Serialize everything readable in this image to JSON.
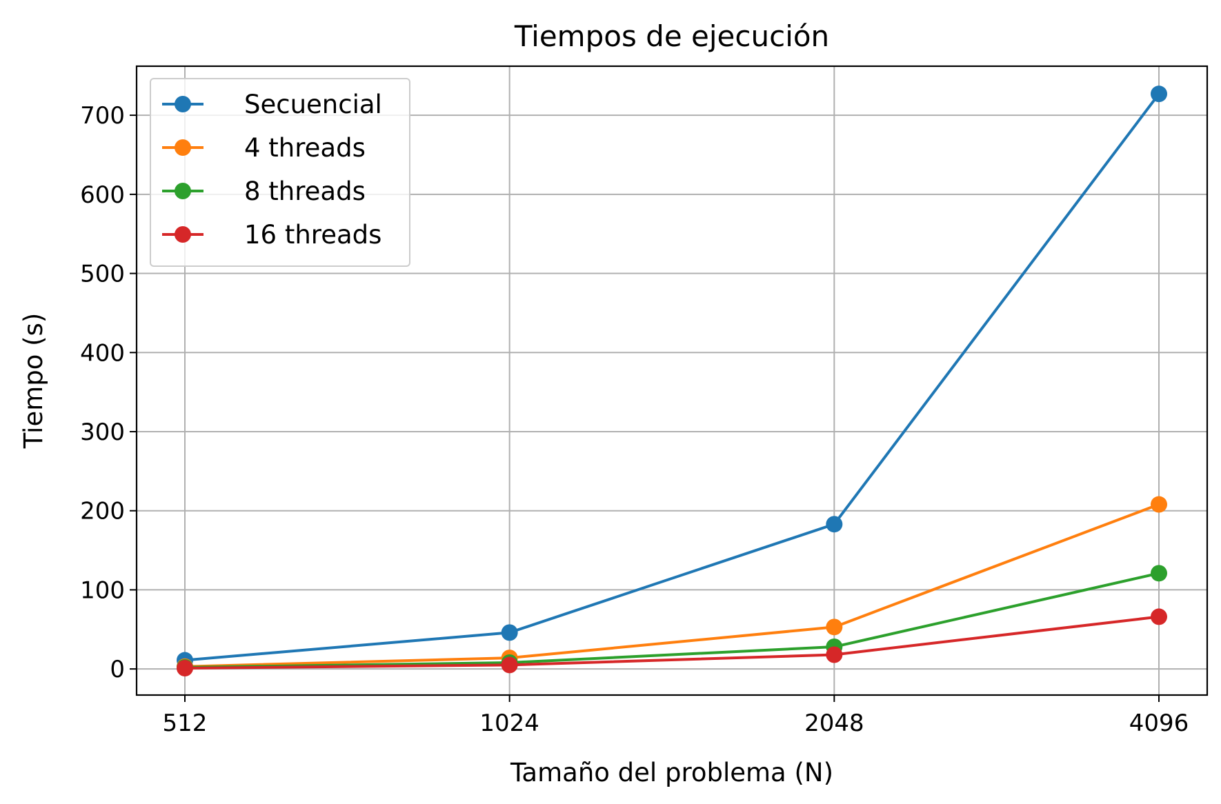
{
  "chart_data": {
    "type": "line",
    "title": "Tiempos de ejecución",
    "xlabel": "Tamaño del problema (N)",
    "ylabel": "Tiempo (s)",
    "categories": [
      "512",
      "1024",
      "2048",
      "4096"
    ],
    "yticks": [
      0,
      100,
      200,
      300,
      400,
      500,
      600,
      700
    ],
    "ylim": [
      -33,
      762
    ],
    "grid": true,
    "legend_position": "top-left",
    "marker": "circle",
    "series": [
      {
        "name": "Secuencial",
        "color": "#1f77b4",
        "values": [
          11,
          46,
          183,
          727
        ]
      },
      {
        "name": "4 threads",
        "color": "#ff7f0e",
        "values": [
          3,
          14,
          53,
          208
        ]
      },
      {
        "name": "8 threads",
        "color": "#2ca02c",
        "values": [
          2,
          8,
          28,
          121
        ]
      },
      {
        "name": "16 threads",
        "color": "#d62728",
        "values": [
          1,
          5,
          18,
          66
        ]
      }
    ]
  }
}
